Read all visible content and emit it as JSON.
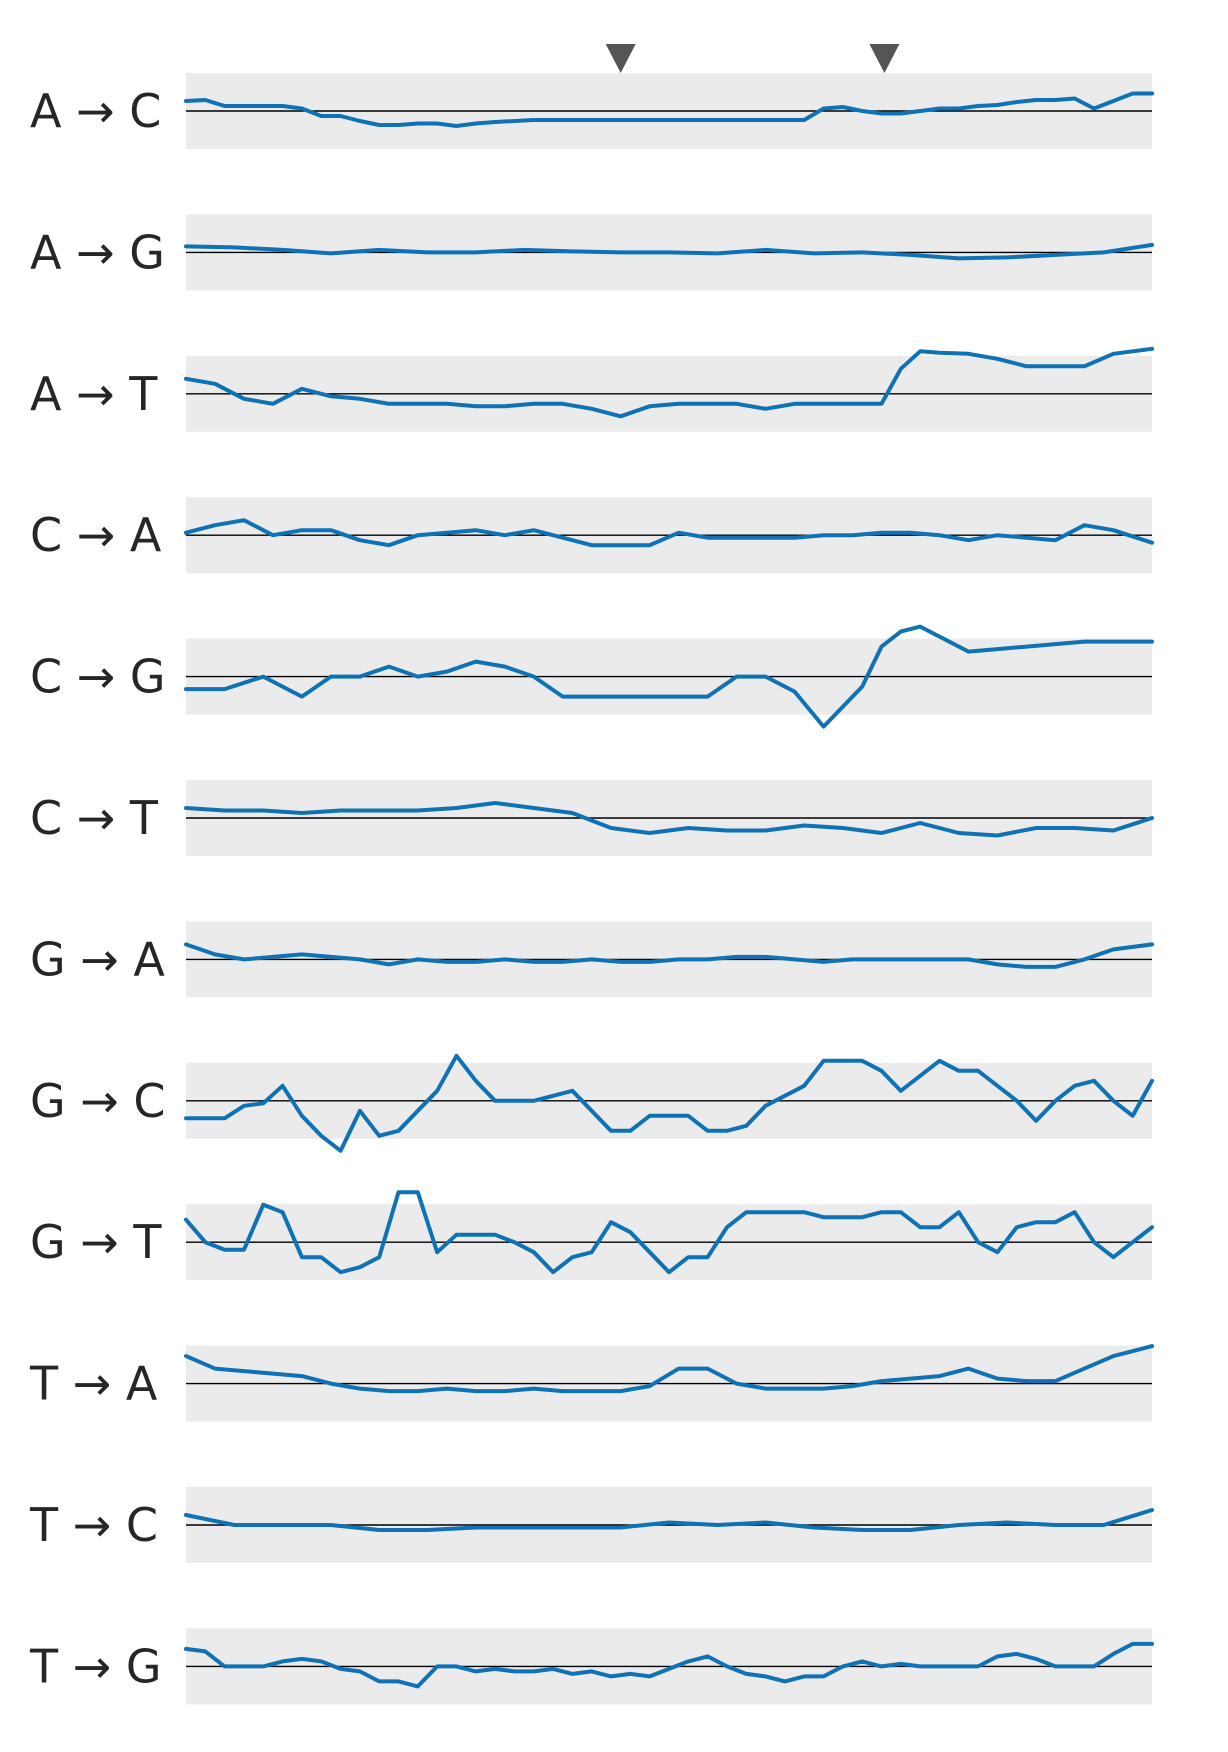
{
  "chart_data": {
    "type": "line",
    "x_domain": [
      0,
      100
    ],
    "ylim": [
      -1,
      1
    ],
    "markers_x": [
      45,
      72.3
    ],
    "grid": false,
    "colors": {
      "line": "#0e72b5",
      "band": "#ebebeb",
      "zero": "#000000",
      "marker": "#555555",
      "label": "#262626"
    },
    "series": [
      {
        "name": "A → C",
        "x": [
          0,
          2,
          4,
          6,
          8,
          10,
          12,
          14,
          16,
          18,
          20,
          22,
          24,
          26,
          28,
          30,
          32,
          34,
          36,
          38,
          40,
          42,
          44,
          46,
          48,
          50,
          52,
          54,
          56,
          58,
          60,
          62,
          64,
          66,
          68,
          70,
          72,
          74,
          76,
          78,
          80,
          82,
          84,
          86,
          88,
          90,
          92,
          94,
          96,
          98,
          100
        ],
        "y": [
          0.2,
          0.22,
          0.1,
          0.1,
          0.1,
          0.1,
          0.05,
          -0.1,
          -0.1,
          -0.2,
          -0.28,
          -0.28,
          -0.25,
          -0.25,
          -0.3,
          -0.25,
          -0.22,
          -0.2,
          -0.18,
          -0.18,
          -0.18,
          -0.18,
          -0.18,
          -0.18,
          -0.18,
          -0.18,
          -0.18,
          -0.18,
          -0.18,
          -0.18,
          -0.18,
          -0.18,
          -0.18,
          0.05,
          0.08,
          0.0,
          -0.05,
          -0.05,
          0.0,
          0.05,
          0.05,
          0.1,
          0.12,
          0.18,
          0.22,
          0.22,
          0.25,
          0.05,
          0.2,
          0.35,
          0.35
        ]
      },
      {
        "name": "A → G",
        "x": [
          0,
          5,
          10,
          15,
          20,
          25,
          30,
          35,
          40,
          45,
          50,
          55,
          60,
          65,
          70,
          75,
          80,
          85,
          90,
          95,
          100
        ],
        "y": [
          0.12,
          0.1,
          0.05,
          -0.02,
          0.05,
          0.0,
          0.0,
          0.05,
          0.02,
          0.0,
          0.0,
          -0.02,
          0.05,
          -0.02,
          0.0,
          -0.05,
          -0.12,
          -0.1,
          -0.05,
          0.0,
          0.15
        ]
      },
      {
        "name": "A → T",
        "x": [
          0,
          3,
          6,
          9,
          12,
          15,
          18,
          21,
          24,
          27,
          30,
          33,
          36,
          39,
          42,
          45,
          48,
          51,
          54,
          57,
          60,
          63,
          66,
          69,
          72,
          74,
          76,
          78,
          81,
          84,
          87,
          90,
          93,
          96,
          100
        ],
        "y": [
          0.3,
          0.2,
          -0.1,
          -0.2,
          0.1,
          -0.05,
          -0.1,
          -0.2,
          -0.2,
          -0.2,
          -0.25,
          -0.25,
          -0.2,
          -0.2,
          -0.3,
          -0.45,
          -0.25,
          -0.2,
          -0.2,
          -0.2,
          -0.3,
          -0.2,
          -0.2,
          -0.2,
          -0.2,
          0.5,
          0.85,
          0.82,
          0.8,
          0.7,
          0.55,
          0.55,
          0.55,
          0.8,
          0.9
        ]
      },
      {
        "name": "C → A",
        "x": [
          0,
          3,
          6,
          9,
          12,
          15,
          18,
          21,
          24,
          27,
          30,
          33,
          36,
          39,
          42,
          45,
          48,
          51,
          54,
          57,
          60,
          63,
          66,
          69,
          72,
          75,
          78,
          81,
          84,
          87,
          90,
          93,
          96,
          100
        ],
        "y": [
          0.05,
          0.2,
          0.3,
          0.0,
          0.1,
          0.1,
          -0.1,
          -0.2,
          0.0,
          0.05,
          0.1,
          0.0,
          0.1,
          -0.05,
          -0.2,
          -0.2,
          -0.2,
          0.05,
          -0.05,
          -0.05,
          -0.05,
          -0.05,
          0.0,
          0.0,
          0.05,
          0.05,
          0.0,
          -0.1,
          0.0,
          -0.05,
          -0.1,
          0.2,
          0.1,
          -0.15
        ]
      },
      {
        "name": "C → G",
        "x": [
          0,
          4,
          8,
          12,
          15,
          18,
          21,
          24,
          27,
          30,
          33,
          36,
          39,
          42,
          45,
          48,
          51,
          54,
          57,
          60,
          63,
          66,
          68,
          70,
          72,
          74,
          76,
          78,
          81,
          84,
          87,
          90,
          93,
          96,
          100
        ],
        "y": [
          -0.25,
          -0.25,
          0.0,
          -0.4,
          0.0,
          0.0,
          0.2,
          0.0,
          0.1,
          0.3,
          0.2,
          0.0,
          -0.4,
          -0.4,
          -0.4,
          -0.4,
          -0.4,
          -0.4,
          0.0,
          0.0,
          -0.3,
          -1.0,
          -0.6,
          -0.2,
          0.6,
          0.9,
          1.0,
          0.8,
          0.5,
          0.55,
          0.6,
          0.65,
          0.7,
          0.7,
          0.7
        ]
      },
      {
        "name": "C → T",
        "x": [
          0,
          4,
          8,
          12,
          16,
          20,
          24,
          28,
          32,
          36,
          40,
          44,
          48,
          52,
          56,
          60,
          64,
          68,
          72,
          76,
          80,
          84,
          88,
          92,
          96,
          100
        ],
        "y": [
          0.2,
          0.15,
          0.15,
          0.1,
          0.15,
          0.15,
          0.15,
          0.2,
          0.3,
          0.2,
          0.1,
          -0.2,
          -0.3,
          -0.2,
          -0.25,
          -0.25,
          -0.15,
          -0.2,
          -0.3,
          -0.1,
          -0.3,
          -0.35,
          -0.2,
          -0.2,
          -0.25,
          0.0
        ]
      },
      {
        "name": "G → A",
        "x": [
          0,
          3,
          6,
          9,
          12,
          15,
          18,
          21,
          24,
          27,
          30,
          33,
          36,
          39,
          42,
          45,
          48,
          51,
          54,
          57,
          60,
          63,
          66,
          69,
          72,
          75,
          78,
          81,
          84,
          87,
          90,
          93,
          96,
          100
        ],
        "y": [
          0.3,
          0.1,
          0.0,
          0.05,
          0.1,
          0.05,
          0.0,
          -0.1,
          0.0,
          -0.05,
          -0.05,
          0.0,
          -0.05,
          -0.05,
          0.0,
          -0.05,
          -0.05,
          0.0,
          0.0,
          0.05,
          0.05,
          0.0,
          -0.05,
          0.0,
          0.0,
          0.0,
          0.0,
          0.0,
          -0.1,
          -0.15,
          -0.15,
          0.0,
          0.2,
          0.3
        ]
      },
      {
        "name": "G → C",
        "x": [
          0,
          2,
          4,
          6,
          8,
          10,
          12,
          14,
          16,
          18,
          20,
          22,
          24,
          26,
          28,
          30,
          32,
          34,
          36,
          38,
          40,
          42,
          44,
          46,
          48,
          50,
          52,
          54,
          56,
          58,
          60,
          62,
          64,
          66,
          68,
          70,
          72,
          74,
          76,
          78,
          80,
          82,
          84,
          86,
          88,
          90,
          92,
          94,
          96,
          98,
          100
        ],
        "y": [
          -0.35,
          -0.35,
          -0.35,
          -0.1,
          -0.05,
          0.3,
          -0.3,
          -0.7,
          -1.0,
          -0.2,
          -0.7,
          -0.6,
          -0.2,
          0.2,
          0.9,
          0.4,
          0.0,
          0.0,
          0.0,
          0.1,
          0.2,
          -0.2,
          -0.6,
          -0.6,
          -0.3,
          -0.3,
          -0.3,
          -0.6,
          -0.6,
          -0.5,
          -0.1,
          0.1,
          0.3,
          0.8,
          0.8,
          0.8,
          0.6,
          0.2,
          0.5,
          0.8,
          0.6,
          0.6,
          0.3,
          0.0,
          -0.4,
          0.0,
          0.3,
          0.4,
          0.0,
          -0.3,
          0.4
        ]
      },
      {
        "name": "G → T",
        "x": [
          0,
          2,
          4,
          6,
          8,
          10,
          12,
          14,
          16,
          18,
          20,
          22,
          24,
          26,
          28,
          30,
          32,
          34,
          36,
          38,
          40,
          42,
          44,
          46,
          48,
          50,
          52,
          54,
          56,
          58,
          60,
          62,
          64,
          66,
          68,
          70,
          72,
          74,
          76,
          78,
          80,
          82,
          84,
          86,
          88,
          90,
          92,
          94,
          96,
          98,
          100
        ],
        "y": [
          0.45,
          0.0,
          -0.15,
          -0.15,
          0.75,
          0.6,
          -0.3,
          -0.3,
          -0.6,
          -0.5,
          -0.3,
          1.0,
          1.0,
          -0.2,
          0.15,
          0.15,
          0.15,
          0.0,
          -0.2,
          -0.6,
          -0.3,
          -0.2,
          0.4,
          0.2,
          -0.2,
          -0.6,
          -0.3,
          -0.3,
          0.3,
          0.6,
          0.6,
          0.6,
          0.6,
          0.5,
          0.5,
          0.5,
          0.6,
          0.6,
          0.3,
          0.3,
          0.6,
          0.0,
          -0.2,
          0.3,
          0.4,
          0.4,
          0.6,
          0.0,
          -0.3,
          0.0,
          0.3
        ]
      },
      {
        "name": "T → A",
        "x": [
          0,
          3,
          6,
          9,
          12,
          15,
          18,
          21,
          24,
          27,
          30,
          33,
          36,
          39,
          42,
          45,
          48,
          51,
          54,
          57,
          60,
          63,
          66,
          69,
          72,
          75,
          78,
          81,
          84,
          87,
          90,
          93,
          96,
          100
        ],
        "y": [
          0.55,
          0.3,
          0.25,
          0.2,
          0.15,
          0.0,
          -0.1,
          -0.15,
          -0.15,
          -0.1,
          -0.15,
          -0.15,
          -0.1,
          -0.15,
          -0.15,
          -0.15,
          -0.05,
          0.3,
          0.3,
          0.0,
          -0.1,
          -0.1,
          -0.1,
          -0.05,
          0.05,
          0.1,
          0.15,
          0.3,
          0.1,
          0.05,
          0.05,
          0.3,
          0.55,
          0.75
        ]
      },
      {
        "name": "T → C",
        "x": [
          0,
          5,
          10,
          15,
          20,
          25,
          30,
          35,
          40,
          45,
          50,
          55,
          60,
          65,
          70,
          75,
          80,
          85,
          90,
          95,
          100
        ],
        "y": [
          0.2,
          0.0,
          0.0,
          0.0,
          -0.1,
          -0.1,
          -0.05,
          -0.05,
          -0.05,
          -0.05,
          0.05,
          0.0,
          0.05,
          -0.05,
          -0.1,
          -0.1,
          0.0,
          0.05,
          0.0,
          0.0,
          0.3
        ]
      },
      {
        "name": "T → G",
        "x": [
          0,
          2,
          4,
          6,
          8,
          10,
          12,
          14,
          16,
          18,
          20,
          22,
          24,
          26,
          28,
          30,
          32,
          34,
          36,
          38,
          40,
          42,
          44,
          46,
          48,
          50,
          52,
          54,
          56,
          58,
          60,
          62,
          64,
          66,
          68,
          70,
          72,
          74,
          76,
          78,
          80,
          82,
          84,
          86,
          88,
          90,
          92,
          94,
          96,
          98,
          100
        ],
        "y": [
          0.35,
          0.3,
          0.0,
          0.0,
          0.0,
          0.1,
          0.15,
          0.1,
          -0.05,
          -0.1,
          -0.3,
          -0.3,
          -0.4,
          0.0,
          0.0,
          -0.1,
          -0.05,
          -0.1,
          -0.1,
          -0.05,
          -0.15,
          -0.1,
          -0.2,
          -0.15,
          -0.2,
          -0.05,
          0.1,
          0.2,
          0.0,
          -0.15,
          -0.2,
          -0.3,
          -0.2,
          -0.2,
          0.0,
          0.1,
          0.0,
          0.05,
          0.0,
          0.0,
          0.0,
          0.0,
          0.2,
          0.25,
          0.15,
          0.0,
          0.0,
          0.0,
          0.25,
          0.45,
          0.45
        ]
      }
    ]
  }
}
